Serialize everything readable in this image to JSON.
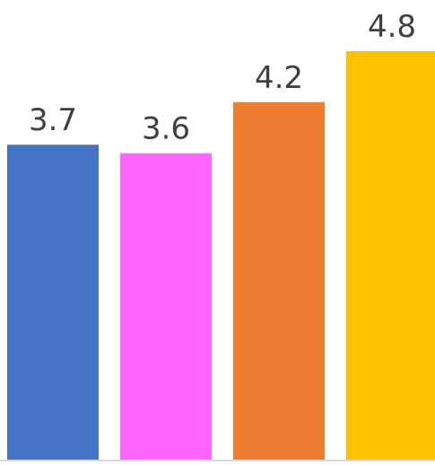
{
  "chart_data": {
    "type": "bar",
    "categories": [
      "",
      "",
      "",
      ""
    ],
    "values": [
      3.7,
      3.6,
      4.2,
      4.8
    ],
    "value_labels": [
      "3.7",
      "3.6",
      "4.2",
      "4.8"
    ],
    "colors": [
      "#4472C4",
      "#FF66FF",
      "#ED7D31",
      "#FFC000"
    ],
    "title": "",
    "xlabel": "",
    "ylabel": "",
    "ylim": [
      0,
      4.8
    ],
    "grid": false,
    "legend": "none",
    "baseline_color": "#D9D9D9"
  }
}
